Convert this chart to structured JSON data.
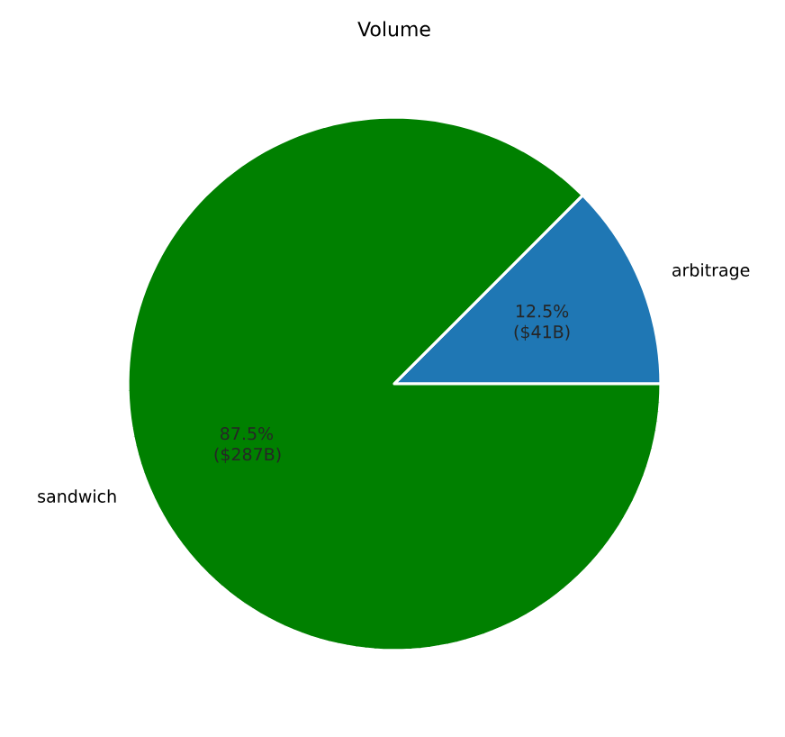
{
  "chart_data": {
    "type": "pie",
    "title": "Volume",
    "categories": [
      "arbitrage",
      "sandwich"
    ],
    "values": [
      12.5,
      87.5
    ],
    "colors": [
      "#1f77b4",
      "#008000"
    ],
    "value_labels": [
      "12.5% ($41B)",
      "87.5% ($287B)"
    ]
  }
}
